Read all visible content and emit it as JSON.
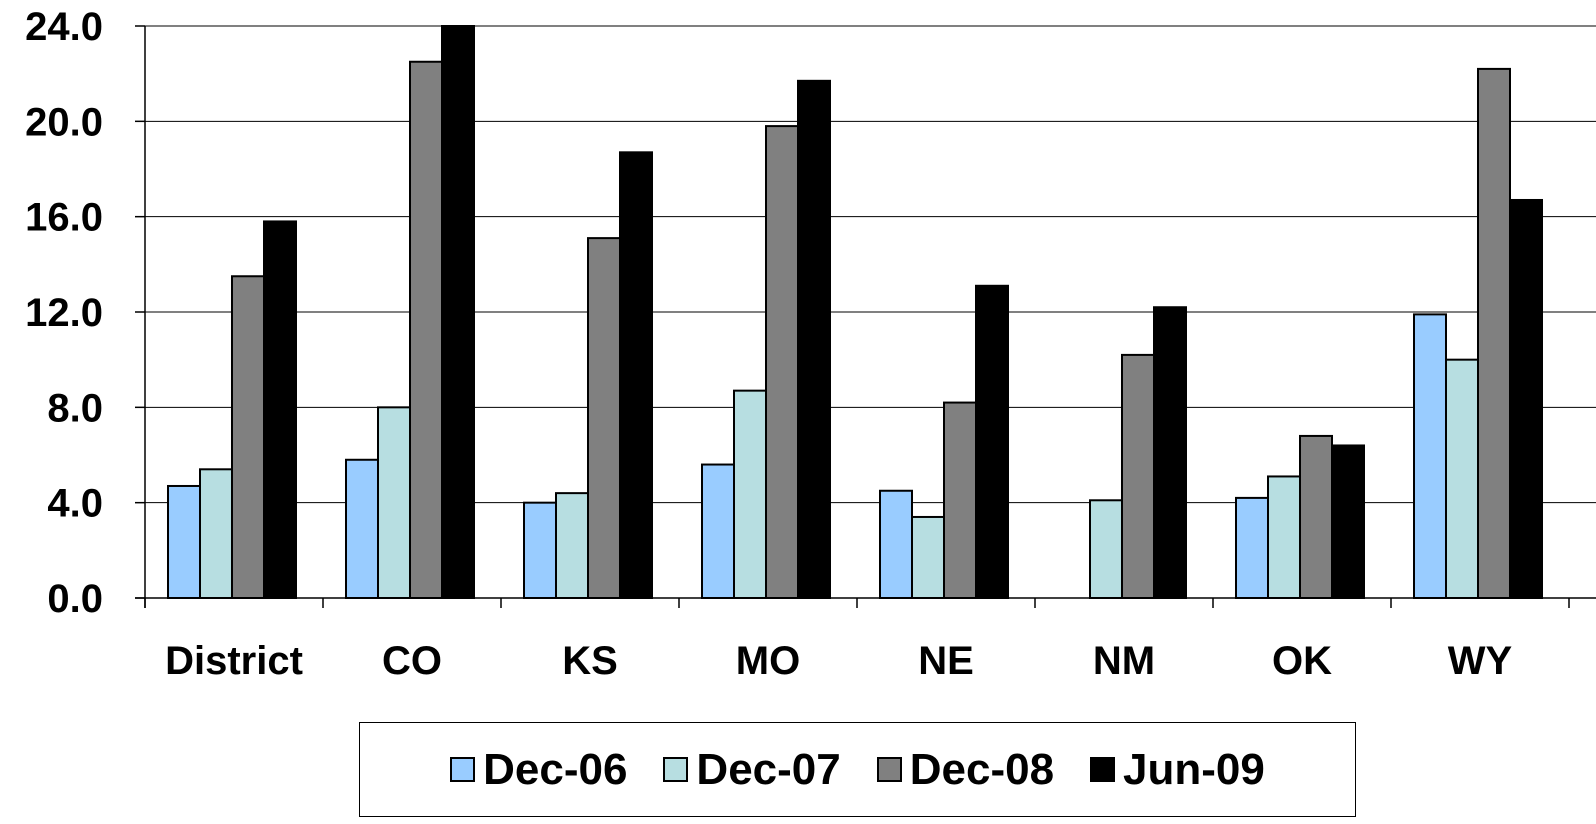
{
  "chart_data": {
    "type": "bar",
    "title": "",
    "xlabel": "",
    "ylabel": "",
    "ylim": [
      0,
      24
    ],
    "y_ticks": [
      "0.0",
      "4.0",
      "8.0",
      "12.0",
      "16.0",
      "20.0",
      "24.0"
    ],
    "grid": true,
    "legend_position": "bottom",
    "categories": [
      "District",
      "CO",
      "KS",
      "MO",
      "NE",
      "NM",
      "OK",
      "WY"
    ],
    "series": [
      {
        "name": "Dec-06",
        "color": "#99CCFF",
        "values": [
          4.7,
          5.8,
          4.0,
          5.6,
          4.5,
          null,
          4.2,
          11.9
        ]
      },
      {
        "name": "Dec-07",
        "color": "#B7DEE1",
        "values": [
          5.4,
          8.0,
          4.4,
          8.7,
          3.4,
          4.1,
          5.1,
          10.0
        ]
      },
      {
        "name": "Dec-08",
        "color": "#808080",
        "values": [
          13.5,
          22.5,
          15.1,
          19.8,
          8.2,
          10.2,
          6.8,
          22.2
        ]
      },
      {
        "name": "Jun-09",
        "color": "#000000",
        "values": [
          15.8,
          24.0,
          18.7,
          21.7,
          13.1,
          12.2,
          6.4,
          16.7
        ]
      }
    ]
  }
}
